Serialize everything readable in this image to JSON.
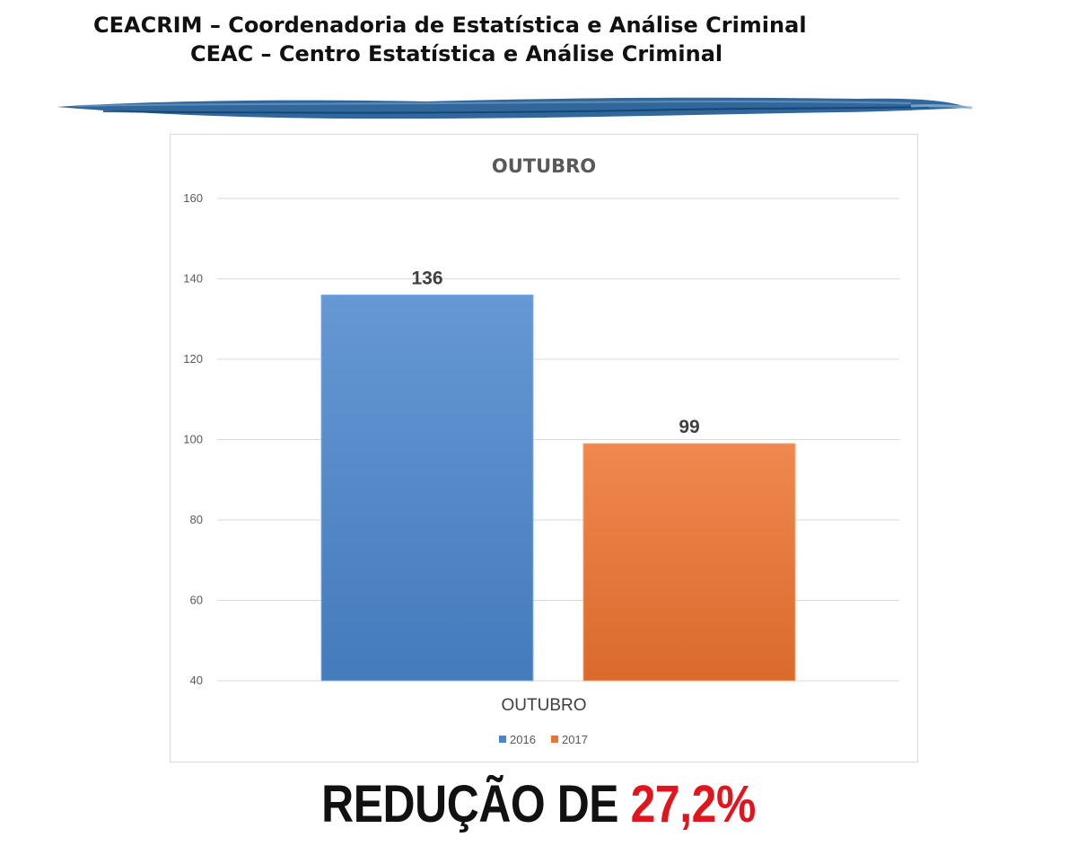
{
  "header": {
    "line1": "CEACRIM – Coordenadoria de Estatística e Análise Criminal",
    "line2": "CEAC – Centro Estatística e Análise Criminal"
  },
  "colors": {
    "series_2016": "#4a86cc",
    "series_2017": "#ed7330",
    "highlight": "#e0161f",
    "brush": "#1f5a93"
  },
  "footer": {
    "text": "REDUÇÃO DE",
    "percent": "27,2%"
  },
  "chart_data": {
    "type": "bar",
    "title": "OUTUBRO",
    "categories": [
      "OUTUBRO"
    ],
    "series": [
      {
        "name": "2016",
        "values": [
          136
        ]
      },
      {
        "name": "2017",
        "values": [
          99
        ]
      }
    ],
    "ylim": [
      40,
      160
    ],
    "yticks": [
      40,
      60,
      80,
      100,
      120,
      140,
      160
    ],
    "grid": true,
    "legend": "bottom",
    "data_labels": true
  }
}
